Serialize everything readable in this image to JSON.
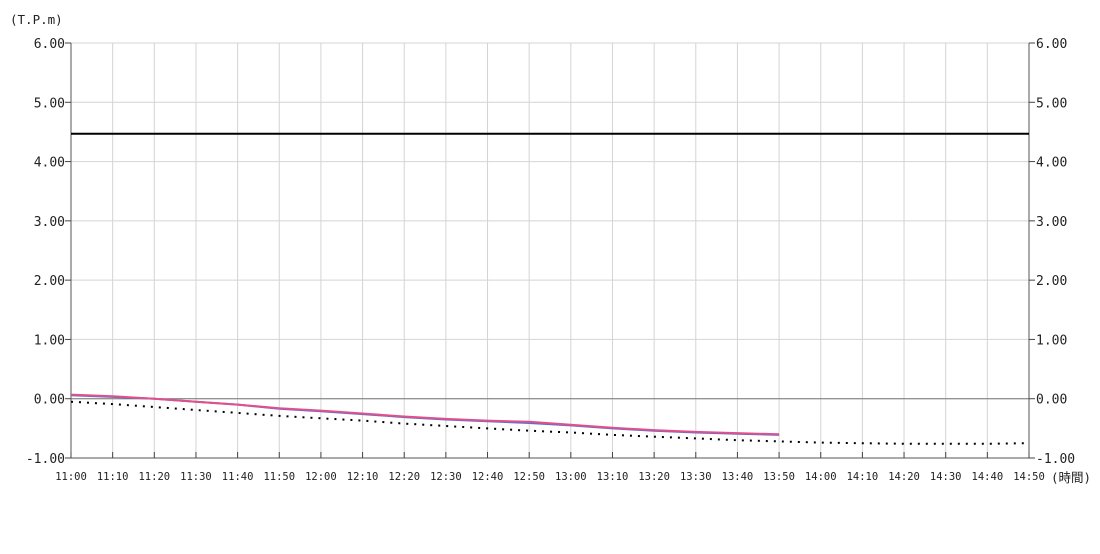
{
  "chart_data": {
    "type": "line",
    "y_unit_label": "(T.P.m)",
    "x_unit_label": "(時間)",
    "ylim": [
      -1.0,
      6.0
    ],
    "y_ticks": [
      "6.00",
      "5.00",
      "4.00",
      "3.00",
      "2.00",
      "1.00",
      "0.00",
      "-1.00"
    ],
    "y_tick_values": [
      6,
      5,
      4,
      3,
      2,
      1,
      0,
      -1
    ],
    "x_ticks": [
      "11:00",
      "11:10",
      "11:20",
      "11:30",
      "11:40",
      "11:50",
      "12:00",
      "12:10",
      "12:20",
      "12:30",
      "12:40",
      "12:50",
      "13:00",
      "13:10",
      "13:20",
      "13:30",
      "13:40",
      "13:50",
      "14:00",
      "14:10",
      "14:20",
      "14:30",
      "14:40",
      "14:50"
    ],
    "grid": true,
    "zero_line": 0,
    "series": [
      {
        "style": "solid",
        "color": "#000000",
        "x": [
          "11:00",
          "14:50"
        ],
        "y": [
          4.47,
          4.47
        ]
      },
      {
        "style": "dotted",
        "color": "#000000",
        "x": [
          "11:00",
          "11:10",
          "11:20",
          "11:30",
          "11:40",
          "11:50",
          "12:00",
          "12:10",
          "12:20",
          "12:30",
          "12:40",
          "12:50",
          "13:00",
          "13:10",
          "13:20",
          "13:30",
          "13:40",
          "13:50",
          "14:00",
          "14:10",
          "14:20",
          "14:30",
          "14:40",
          "14:50"
        ],
        "y": [
          -0.05,
          -0.09,
          -0.14,
          -0.19,
          -0.24,
          -0.29,
          -0.33,
          -0.37,
          -0.42,
          -0.46,
          -0.5,
          -0.54,
          -0.57,
          -0.61,
          -0.64,
          -0.67,
          -0.7,
          -0.72,
          -0.74,
          -0.75,
          -0.76,
          -0.76,
          -0.76,
          -0.75
        ]
      },
      {
        "style": "solid",
        "color": "#5a6fd0",
        "x": [
          "11:00",
          "11:10",
          "11:20",
          "11:30",
          "11:40",
          "11:50",
          "12:00",
          "12:10",
          "12:20",
          "12:30",
          "12:40",
          "12:50",
          "13:00",
          "13:10",
          "13:20",
          "13:30",
          "13:40",
          "13:50"
        ],
        "y": [
          0.06,
          0.03,
          0.0,
          -0.05,
          -0.1,
          -0.17,
          -0.21,
          -0.26,
          -0.31,
          -0.35,
          -0.38,
          -0.41,
          -0.45,
          -0.5,
          -0.54,
          -0.57,
          -0.59,
          -0.61
        ]
      },
      {
        "style": "solid",
        "color": "#e0508a",
        "x": [
          "11:00",
          "11:10",
          "11:20",
          "11:30",
          "11:40",
          "11:50",
          "12:00",
          "12:10",
          "12:20",
          "12:30",
          "12:40",
          "12:50",
          "13:00",
          "13:10",
          "13:20",
          "13:30",
          "13:40",
          "13:50"
        ],
        "y": [
          0.07,
          0.04,
          0.0,
          -0.05,
          -0.1,
          -0.16,
          -0.2,
          -0.25,
          -0.3,
          -0.34,
          -0.37,
          -0.39,
          -0.44,
          -0.49,
          -0.53,
          -0.56,
          -0.58,
          -0.6
        ]
      }
    ]
  }
}
